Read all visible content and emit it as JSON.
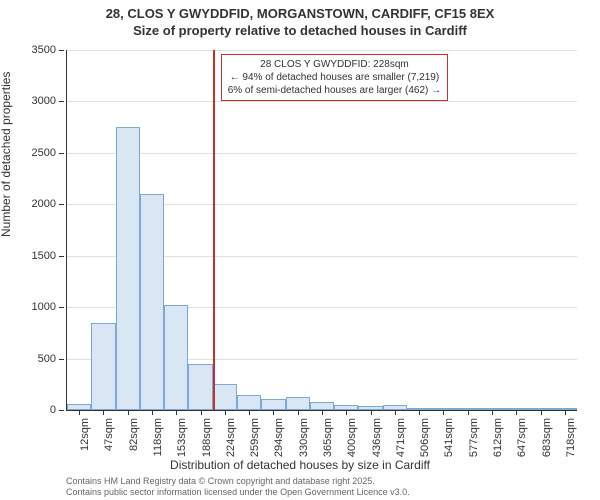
{
  "title_line1": "28, CLOS Y GWYDDFID, MORGANSTOWN, CARDIFF, CF15 8EX",
  "title_line2": "Size of property relative to detached houses in Cardiff",
  "y_axis_label": "Number of detached properties",
  "x_axis_label": "Distribution of detached houses by size in Cardiff",
  "footer_line1": "Contains HM Land Registry data © Crown copyright and database right 2025.",
  "footer_line2": "Contains public sector information licensed under the Open Government Licence v3.0.",
  "chart": {
    "type": "histogram",
    "ylim": [
      0,
      3500
    ],
    "ytick_step": 500,
    "background_color": "#ffffff",
    "grid_color": "#e0e0e0",
    "bar_fill": "#d9e6f4",
    "bar_border": "#7ca8d4",
    "marker_color": "#c23030",
    "x_labels": [
      "12sqm",
      "47sqm",
      "82sqm",
      "118sqm",
      "153sqm",
      "188sqm",
      "224sqm",
      "259sqm",
      "294sqm",
      "330sqm",
      "365sqm",
      "400sqm",
      "436sqm",
      "471sqm",
      "506sqm",
      "541sqm",
      "577sqm",
      "612sqm",
      "647sqm",
      "683sqm",
      "718sqm"
    ],
    "values": [
      60,
      850,
      2750,
      2100,
      1020,
      450,
      250,
      150,
      110,
      130,
      80,
      50,
      40,
      50,
      15,
      10,
      8,
      6,
      5,
      3,
      2
    ],
    "marker_index": 6,
    "info_line1": "28 CLOS Y GWYDDFID: 228sqm",
    "info_line2": "← 94% of detached houses are smaller (7,219)",
    "info_line3": "6% of semi-detached houses are larger (462) →"
  }
}
